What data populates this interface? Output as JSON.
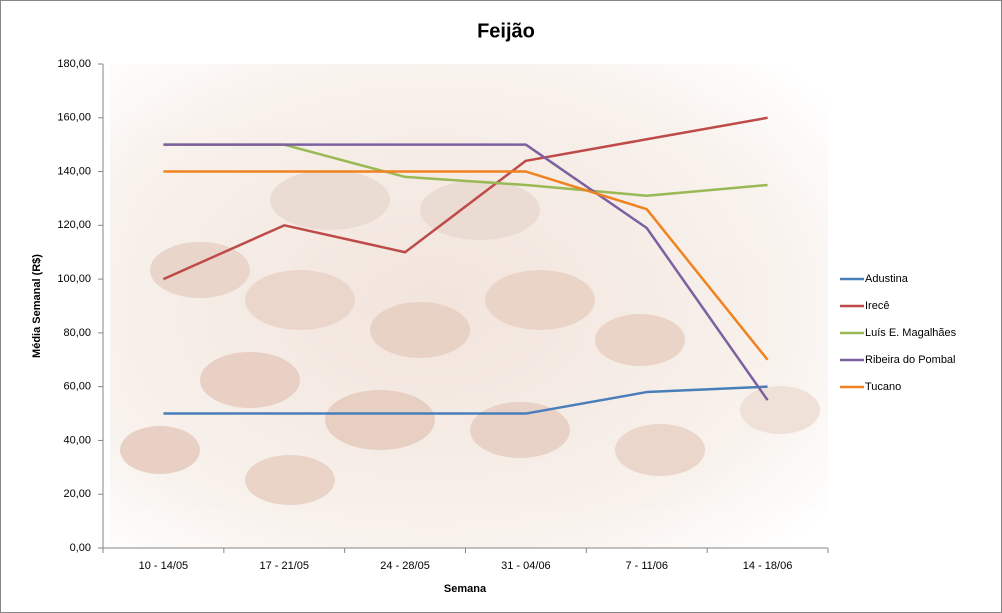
{
  "chart_data": {
    "type": "line",
    "title": "Feijão",
    "x_label": "Semana",
    "y_label": "Média Semanal (R$)",
    "categories": [
      "10 - 14/05",
      "17 - 21/05",
      "24 - 28/05",
      "31 - 04/06",
      "7 - 11/06",
      "14 - 18/06"
    ],
    "series": [
      {
        "name": "Adustina",
        "color": "#4a7ebb",
        "values": [
          50,
          50,
          50,
          50,
          58,
          60
        ]
      },
      {
        "name": "Irecê",
        "color": "#be4b48",
        "values": [
          100,
          120,
          110,
          144,
          152,
          160
        ]
      },
      {
        "name": "Luís E. Magalhães",
        "color": "#98b954",
        "values": [
          150,
          150,
          138,
          135,
          131,
          135
        ]
      },
      {
        "name": "Ribeira do Pombal",
        "color": "#7d60a0",
        "values": [
          150,
          150,
          150,
          150,
          119,
          55
        ]
      },
      {
        "name": "Tucano",
        "color": "#f08221",
        "values": [
          140,
          140,
          140,
          140,
          126,
          70
        ]
      }
    ],
    "ylim": [
      0,
      180
    ],
    "yticks": [
      {
        "value": 0,
        "label": "0,00"
      },
      {
        "value": 20,
        "label": "20,00"
      },
      {
        "value": 40,
        "label": "40,00"
      },
      {
        "value": 60,
        "label": "60,00"
      },
      {
        "value": 80,
        "label": "80,00"
      },
      {
        "value": 100,
        "label": "100,00"
      },
      {
        "value": 120,
        "label": "120,00"
      },
      {
        "value": 140,
        "label": "140,00"
      },
      {
        "value": 160,
        "label": "160,00"
      },
      {
        "value": 180,
        "label": "180,00"
      }
    ],
    "grid": false,
    "legend": "right"
  }
}
